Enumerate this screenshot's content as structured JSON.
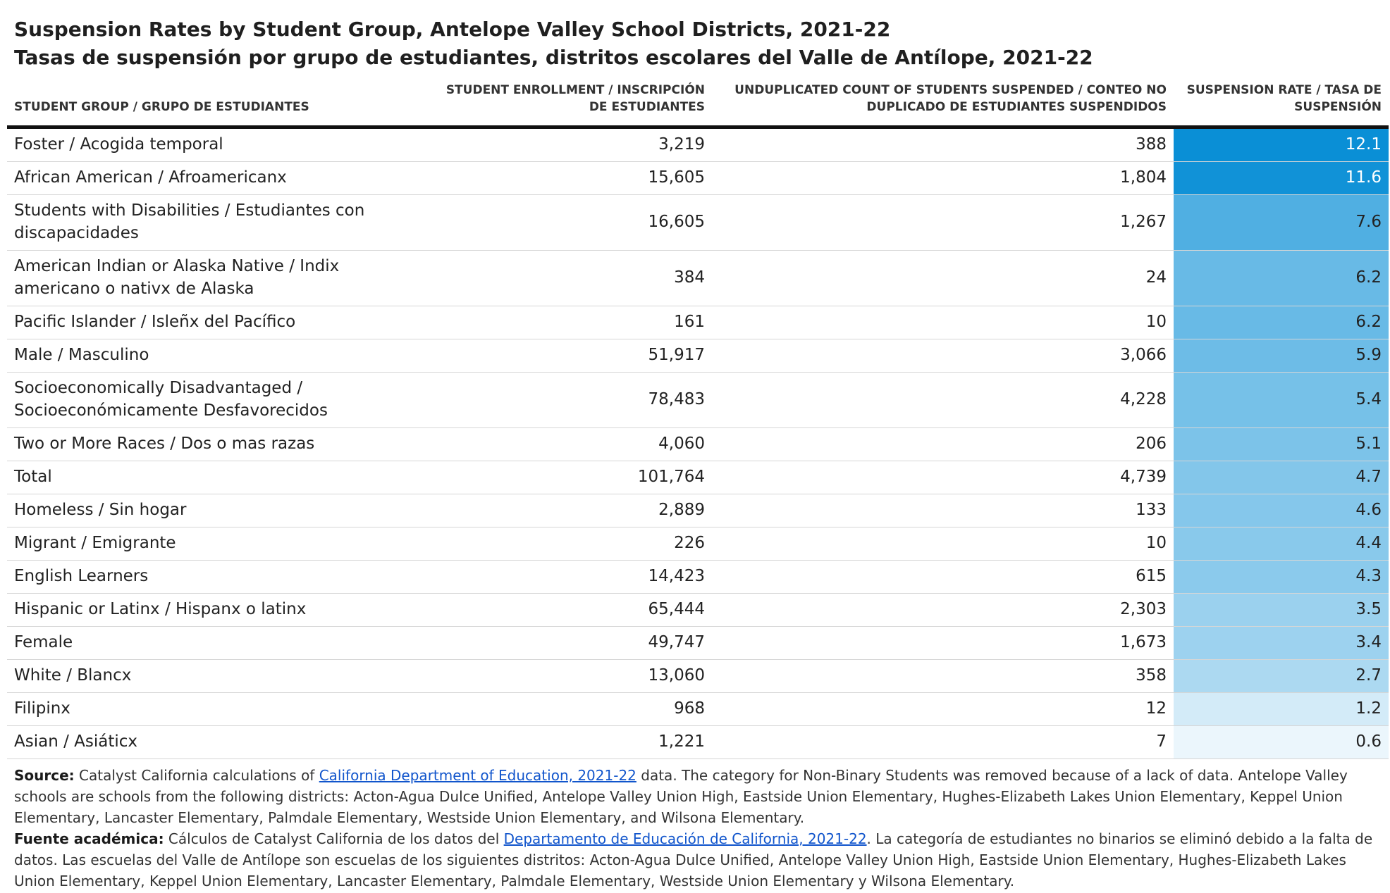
{
  "title": "Suspension Rates by Student Group, Antelope Valley School Districts, 2021-22",
  "subtitle": "Tasas de suspensión por grupo de estudiantes, distritos escolares del Valle de Antílope, 2021-22",
  "colors": {
    "rate_max": "#0a8fd6",
    "rate_min": "#ffffff"
  },
  "chart_data": {
    "type": "table",
    "columns": [
      "Student Group / Grupo de estudiantes",
      "Student Enrollment / Inscripción de estudiantes",
      "Unduplicated Count of Students Suspended / Conteo no duplicado de estudiantes suspendidos",
      "Suspension Rate / Tasa de suspensión"
    ],
    "rows": [
      {
        "group": "Foster / Acogida temporal",
        "enrollment": "3,219",
        "suspended": "388",
        "rate": "12.1"
      },
      {
        "group": "African American / Afroamericanx",
        "enrollment": "15,605",
        "suspended": "1,804",
        "rate": "11.6"
      },
      {
        "group": "Students with Disabilities / Estudiantes con discapacidades",
        "enrollment": "16,605",
        "suspended": "1,267",
        "rate": "7.6"
      },
      {
        "group": "American Indian or Alaska Native / Indix americano o nativx de Alaska",
        "enrollment": "384",
        "suspended": "24",
        "rate": "6.2"
      },
      {
        "group": "Pacific Islander / Isleñx del Pacífico",
        "enrollment": "161",
        "suspended": "10",
        "rate": "6.2"
      },
      {
        "group": "Male / Masculino",
        "enrollment": "51,917",
        "suspended": "3,066",
        "rate": "5.9"
      },
      {
        "group": "Socioeconomically Disadvantaged / Socioeconómicamente Desfavorecidos",
        "enrollment": "78,483",
        "suspended": "4,228",
        "rate": "5.4"
      },
      {
        "group": "Two or More Races / Dos o mas razas",
        "enrollment": "4,060",
        "suspended": "206",
        "rate": "5.1"
      },
      {
        "group": "Total",
        "enrollment": "101,764",
        "suspended": "4,739",
        "rate": "4.7"
      },
      {
        "group": "Homeless / Sin hogar",
        "enrollment": "2,889",
        "suspended": "133",
        "rate": "4.6"
      },
      {
        "group": "Migrant / Emigrante",
        "enrollment": "226",
        "suspended": "10",
        "rate": "4.4"
      },
      {
        "group": "English Learners",
        "enrollment": "14,423",
        "suspended": "615",
        "rate": "4.3"
      },
      {
        "group": "Hispanic or Latinx / Hispanx o latinx",
        "enrollment": "65,444",
        "suspended": "2,303",
        "rate": "3.5"
      },
      {
        "group": "Female",
        "enrollment": "49,747",
        "suspended": "1,673",
        "rate": "3.4"
      },
      {
        "group": "White / Blancx",
        "enrollment": "13,060",
        "suspended": "358",
        "rate": "2.7"
      },
      {
        "group": "Filipinx",
        "enrollment": "968",
        "suspended": "12",
        "rate": "1.2"
      },
      {
        "group": "Asian / Asiáticx",
        "enrollment": "1,221",
        "suspended": "7",
        "rate": "0.6"
      }
    ]
  },
  "footer": {
    "source_label": "Source:",
    "source_pre": " Catalyst California calculations of ",
    "source_link": "California Department of Education, 2021-22",
    "source_post": " data. The category for Non-Binary Students was removed because of a lack of data. Antelope Valley schools are schools from the following districts: Acton-Agua Dulce Unified, Antelope Valley Union High, Eastside Union Elementary, Hughes-Elizabeth Lakes Union Elementary, Keppel Union Elementary, Lancaster Elementary, Palmdale Elementary, Westside Union Elementary, and Wilsona Elementary.",
    "fuente_label": "Fuente académica:",
    "fuente_pre": " Cálculos de Catalyst California de los datos del ",
    "fuente_link": "Departamento de Educación de California, 2021-22",
    "fuente_post": ". La categoría de estudiantes no binarios se eliminó debido a la falta de datos. Las escuelas del Valle de Antílope son escuelas de los siguientes distritos: Acton-Agua Dulce Unified, Antelope Valley Union High, Eastside Union Elementary, Hughes-Elizabeth Lakes Union Elementary, Keppel Union Elementary, Lancaster Elementary, Palmdale Elementary, Westside Union Elementary y Wilsona Elementary."
  }
}
